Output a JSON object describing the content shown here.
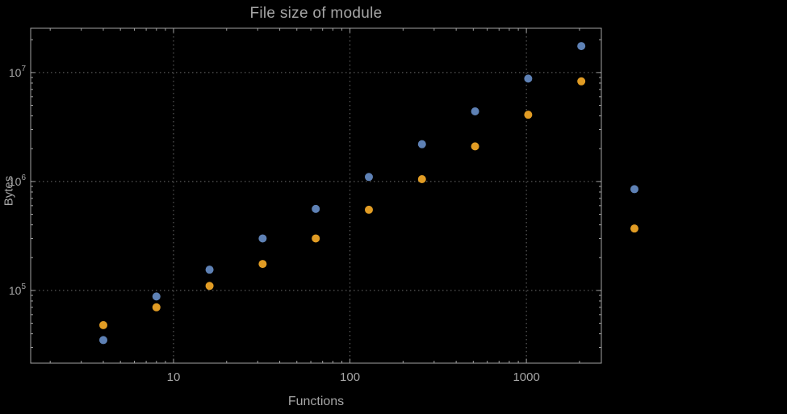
{
  "title": "File size of module",
  "colors": {
    "background": "#000000",
    "frame": "#a2a2a2",
    "grid": "#6b6b6b",
    "text": "#a6a6a6",
    "series_blue": "#5e81b5",
    "series_orange": "#e19c24"
  },
  "chart_data": {
    "type": "scatter",
    "title": "File size of module",
    "xlabel": "Functions",
    "ylabel": "Bytes",
    "xscale": "log",
    "yscale": "log",
    "xlim": [
      1.55,
      2660
    ],
    "ylim": [
      21500,
      25500000
    ],
    "grid": "dotted-at-major-ticks",
    "legend": "none",
    "x_ticks": [
      10,
      100,
      1000
    ],
    "x_tick_labels": [
      "10",
      "100",
      "1000"
    ],
    "y_ticks": [
      100000,
      1000000,
      10000000
    ],
    "y_tick_labels": [
      {
        "mantissa": "10",
        "exp": "5"
      },
      {
        "mantissa": "10",
        "exp": "6"
      },
      {
        "mantissa": "10",
        "exp": "7"
      }
    ],
    "series": [
      {
        "name": "series-blue",
        "color": "#5e81b5",
        "x": [
          4,
          8,
          16,
          32,
          64,
          128,
          256,
          512,
          1024,
          2048,
          4096
        ],
        "y": [
          35000,
          88000,
          155000,
          300000,
          560000,
          1100000,
          2200000,
          4400000,
          8800000,
          17500000,
          850000
        ]
      },
      {
        "name": "series-orange",
        "color": "#e19c24",
        "x": [
          4,
          8,
          16,
          32,
          64,
          128,
          256,
          512,
          1024,
          2048,
          4096
        ],
        "y": [
          48000,
          70000,
          110000,
          175000,
          300000,
          550000,
          1050000,
          2100000,
          4100000,
          8300000,
          370000
        ]
      }
    ]
  }
}
